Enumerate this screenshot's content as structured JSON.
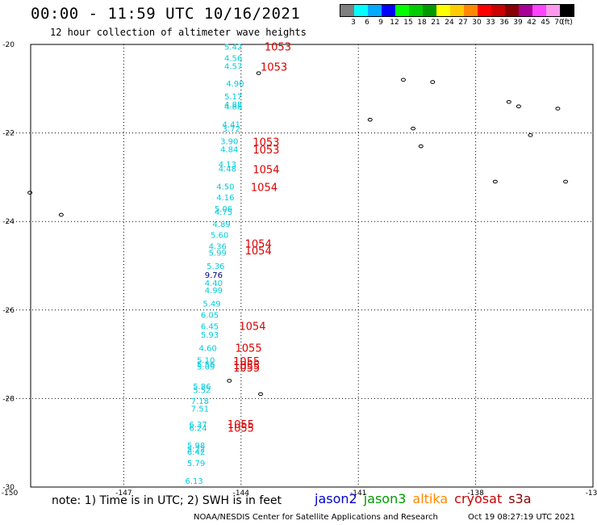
{
  "header": {
    "title": "00:00 - 11:59 UTC 10/16/2021",
    "subtitle": "12 hour collection of altimeter wave heights"
  },
  "legend": {
    "unit": "(ft)",
    "colors": [
      "#808080",
      "#00ffff",
      "#00aaff",
      "#0000ff",
      "#00ff00",
      "#00cc00",
      "#009900",
      "#ffff00",
      "#ffcc00",
      "#ff8800",
      "#ff0000",
      "#cc0000",
      "#880000",
      "#aa0099",
      "#ff44ff",
      "#ff99ee",
      "#000000"
    ],
    "labels": [
      "3",
      "6",
      "9",
      "12",
      "15",
      "18",
      "21",
      "24",
      "27",
      "30",
      "33",
      "36",
      "39",
      "42",
      "45",
      "70"
    ]
  },
  "axes": {
    "lat_labels": [
      "-20",
      "-22",
      "-24",
      "-26",
      "-28",
      "-30"
    ],
    "lon_labels": [
      "-150",
      "-147",
      "-144",
      "-141",
      "-138",
      "-13"
    ]
  },
  "wave_heights": [
    {
      "value": "5.42",
      "lon": -144.2,
      "lat": -20.05
    },
    {
      "value": "4.56",
      "lon": -144.2,
      "lat": -20.3
    },
    {
      "value": "4.57",
      "lon": -144.2,
      "lat": -20.48
    },
    {
      "value": "4.90",
      "lon": -144.15,
      "lat": -20.88
    },
    {
      "value": "5.17",
      "lon": -144.2,
      "lat": -21.17
    },
    {
      "value": "4.85",
      "lon": -144.2,
      "lat": -21.35
    },
    {
      "value": "4.88",
      "lon": -144.2,
      "lat": -21.4
    },
    {
      "value": "4.41",
      "lon": -144.25,
      "lat": -21.8
    },
    {
      "value": "3.72",
      "lon": -144.25,
      "lat": -21.9
    },
    {
      "value": "3.90",
      "lon": -144.3,
      "lat": -22.18
    },
    {
      "value": "4.84",
      "lon": -144.3,
      "lat": -22.36
    },
    {
      "value": "4.13",
      "lon": -144.35,
      "lat": -22.7
    },
    {
      "value": "4.48",
      "lon": -144.35,
      "lat": -22.8
    },
    {
      "value": "4.50",
      "lon": -144.4,
      "lat": -23.2
    },
    {
      "value": "4.16",
      "lon": -144.4,
      "lat": -23.45
    },
    {
      "value": "5.06",
      "lon": -144.45,
      "lat": -23.7
    },
    {
      "value": "4.75",
      "lon": -144.45,
      "lat": -23.78
    },
    {
      "value": "4.89",
      "lon": -144.5,
      "lat": -24.05
    },
    {
      "value": "5.60",
      "lon": -144.55,
      "lat": -24.3
    },
    {
      "value": "4.36",
      "lon": -144.6,
      "lat": -24.55
    },
    {
      "value": "5.99",
      "lon": -144.6,
      "lat": -24.7
    },
    {
      "value": "5.36",
      "lon": -144.65,
      "lat": -25.0
    },
    {
      "value": "9.76",
      "lon": -144.7,
      "lat": -25.2,
      "color": "#000080"
    },
    {
      "value": "4.40",
      "lon": -144.7,
      "lat": -25.38
    },
    {
      "value": "4.99",
      "lon": -144.7,
      "lat": -25.55
    },
    {
      "value": "5.49",
      "lon": -144.75,
      "lat": -25.85
    },
    {
      "value": "6.05",
      "lon": -144.8,
      "lat": -26.1
    },
    {
      "value": "6.45",
      "lon": -144.8,
      "lat": -26.36
    },
    {
      "value": "5.93",
      "lon": -144.8,
      "lat": -26.55
    },
    {
      "value": "4.60",
      "lon": -144.85,
      "lat": -26.85
    },
    {
      "value": "5.10",
      "lon": -144.9,
      "lat": -27.13
    },
    {
      "value": "5.56",
      "lon": -144.9,
      "lat": -27.22
    },
    {
      "value": "5.09",
      "lon": -144.9,
      "lat": -27.27
    },
    {
      "value": "5.86",
      "lon": -145.0,
      "lat": -27.72
    },
    {
      "value": "5.52",
      "lon": -145.0,
      "lat": -27.8
    },
    {
      "value": "7.18",
      "lon": -145.05,
      "lat": -28.05
    },
    {
      "value": "7.51",
      "lon": -145.05,
      "lat": -28.22
    },
    {
      "value": "6.37",
      "lon": -145.1,
      "lat": -28.58
    },
    {
      "value": "6.24",
      "lon": -145.1,
      "lat": -28.66
    },
    {
      "value": "5.98",
      "lon": -145.15,
      "lat": -29.05
    },
    {
      "value": "5.22",
      "lon": -145.15,
      "lat": -29.13
    },
    {
      "value": "6.42",
      "lon": -145.15,
      "lat": -29.2
    },
    {
      "value": "5.79",
      "lon": -145.15,
      "lat": -29.45
    },
    {
      "value": "6.13",
      "lon": -145.2,
      "lat": -29.85
    }
  ],
  "time_labels": [
    {
      "value": "1053",
      "lon": -143.4,
      "lat": -20.05
    },
    {
      "value": "1053",
      "lon": -143.5,
      "lat": -20.5
    },
    {
      "value": "1053",
      "lon": -143.7,
      "lat": -22.2
    },
    {
      "value": "1053",
      "lon": -143.7,
      "lat": -22.37
    },
    {
      "value": "1054",
      "lon": -143.7,
      "lat": -22.82
    },
    {
      "value": "1054",
      "lon": -143.75,
      "lat": -23.22
    },
    {
      "value": "1054",
      "lon": -143.9,
      "lat": -24.5
    },
    {
      "value": "1054",
      "lon": -143.9,
      "lat": -24.65
    },
    {
      "value": "1054",
      "lon": -144.05,
      "lat": -26.36
    },
    {
      "value": "1055",
      "lon": -144.15,
      "lat": -26.85
    },
    {
      "value": "1055",
      "lon": -144.2,
      "lat": -27.15
    },
    {
      "value": "1055",
      "lon": -144.2,
      "lat": -27.24
    },
    {
      "value": "1055",
      "lon": -144.2,
      "lat": -27.3
    },
    {
      "value": "1055",
      "lon": -144.35,
      "lat": -28.58
    },
    {
      "value": "1055",
      "lon": -144.35,
      "lat": -28.66
    }
  ],
  "islands": [
    {
      "lon": -143.55,
      "lat": -20.65
    },
    {
      "lon": -140.7,
      "lat": -21.7
    },
    {
      "lon": -139.85,
      "lat": -20.8
    },
    {
      "lon": -139.1,
      "lat": -20.85
    },
    {
      "lon": -139.6,
      "lat": -21.9
    },
    {
      "lon": -139.4,
      "lat": -22.3
    },
    {
      "lon": -137.15,
      "lat": -21.3
    },
    {
      "lon": -136.9,
      "lat": -21.4
    },
    {
      "lon": -136.6,
      "lat": -22.05
    },
    {
      "lon": -135.9,
      "lat": -21.45
    },
    {
      "lon": -137.5,
      "lat": -23.1
    },
    {
      "lon": -135.7,
      "lat": -23.1
    },
    {
      "lon": -149.4,
      "lat": -23.35
    },
    {
      "lon": -148.6,
      "lat": -23.85
    },
    {
      "lon": -144.3,
      "lat": -27.6
    },
    {
      "lon": -143.5,
      "lat": -27.9
    }
  ],
  "footer": {
    "note": "note: 1) Time is in UTC; 2) SWH is in feet",
    "satellites": [
      {
        "name": "jason2",
        "color": "#0000cc"
      },
      {
        "name": "jason3",
        "color": "#009900"
      },
      {
        "name": "altika",
        "color": "#ff8800"
      },
      {
        "name": "cryosat",
        "color": "#cc0000"
      },
      {
        "name": "s3a",
        "color": "#880000"
      }
    ],
    "credit": "NOAA/NESDIS Center for Satellite Applications and Research",
    "date": "Oct 19 08:27:19 UTC 2021"
  }
}
